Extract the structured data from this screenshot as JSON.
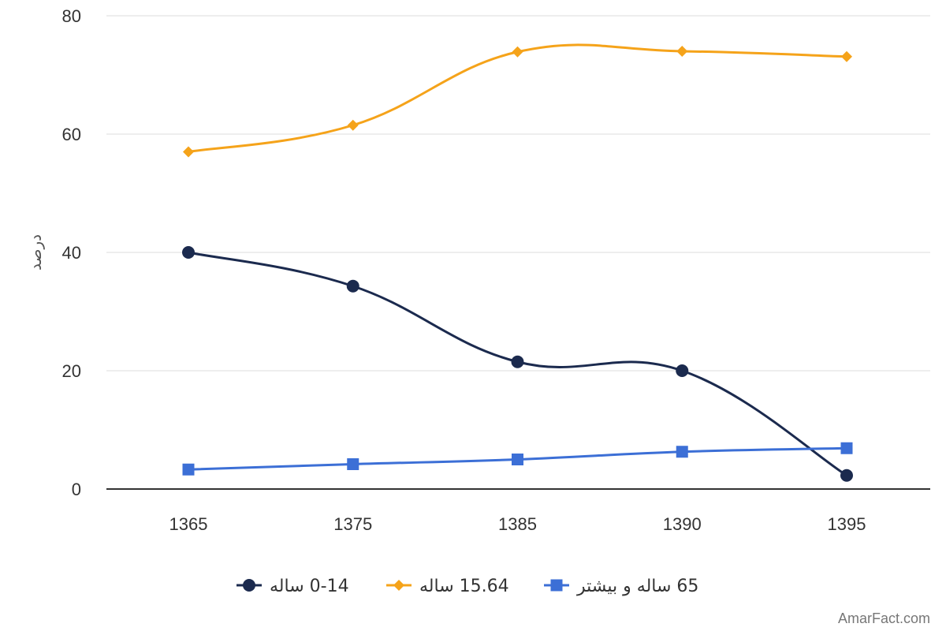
{
  "chart_data": {
    "type": "line",
    "title": "",
    "xlabel": "",
    "ylabel": "درصد",
    "categories": [
      "1365",
      "1375",
      "1385",
      "1390",
      "1395"
    ],
    "ylim": [
      0,
      80
    ],
    "yticks": [
      0,
      20,
      40,
      60,
      80
    ],
    "grid": true,
    "smooth": true,
    "legend_position": "bottom",
    "series": [
      {
        "name": "0-14 ساله",
        "values": [
          40,
          34.3,
          21.5,
          20,
          2.3
        ],
        "color": "#1b2a4e",
        "marker": "circle"
      },
      {
        "name": "15.64 ساله",
        "values": [
          57,
          61.5,
          73.9,
          74,
          73.1
        ],
        "color": "#f5a31a",
        "marker": "diamond"
      },
      {
        "name": "65 ساله و بیشتر",
        "values": [
          3.3,
          4.2,
          5,
          6.3,
          6.9
        ],
        "color": "#3c6fd6",
        "marker": "square"
      }
    ]
  },
  "watermark": "AmarFact.com"
}
